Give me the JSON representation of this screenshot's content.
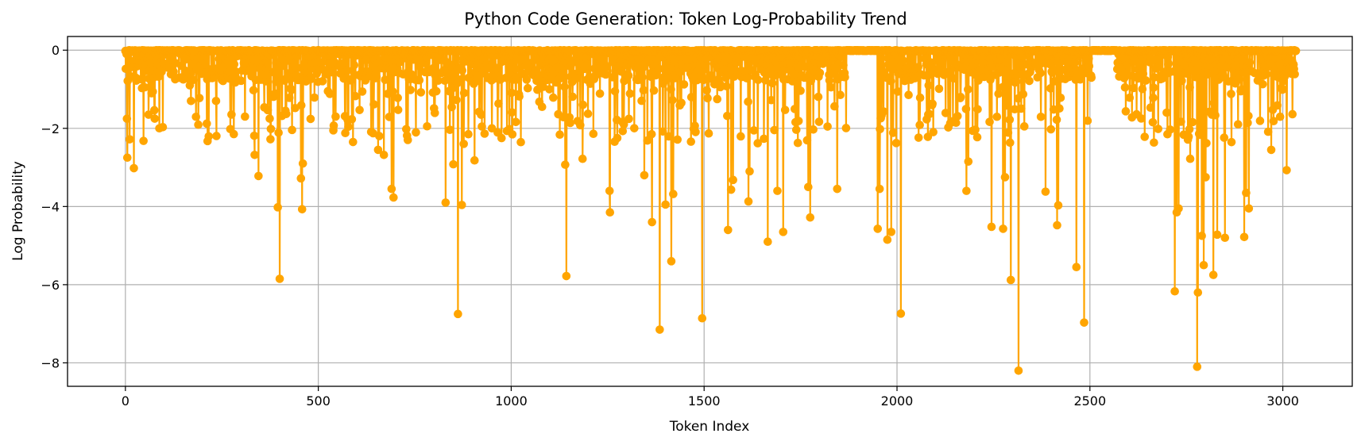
{
  "chart_data": {
    "type": "line",
    "title": "Python Code Generation: Token Log-Probability Trend",
    "xlabel": "Token Index",
    "ylabel": "Log Probability",
    "xlim": [
      -150,
      3180
    ],
    "ylim": [
      -8.6,
      0.35
    ],
    "xticks": [
      0,
      500,
      1000,
      1500,
      2000,
      2500,
      3000
    ],
    "yticks": [
      0,
      -2,
      -4,
      -6,
      -8
    ],
    "xtick_labels": [
      "0",
      "500",
      "1000",
      "1500",
      "2000",
      "2500",
      "3000"
    ],
    "ytick_labels": [
      "0",
      "−2",
      "−4",
      "−6",
      "−8"
    ],
    "grid": true,
    "marker": "circle",
    "n_points": 3035,
    "series": [
      {
        "color": "#FFA500",
        "baseline": 0,
        "points": [
          [
            5,
            -2.75
          ],
          [
            22,
            -3.02
          ],
          [
            60,
            -1.65
          ],
          [
            170,
            -1.3
          ],
          [
            235,
            -1.3
          ],
          [
            272,
            -2.02
          ],
          [
            310,
            -1.7
          ],
          [
            335,
            -2.68
          ],
          [
            345,
            -3.22
          ],
          [
            395,
            -4.02
          ],
          [
            400,
            -5.85
          ],
          [
            415,
            -1.55
          ],
          [
            455,
            -3.28
          ],
          [
            458,
            -4.07
          ],
          [
            460,
            -2.9
          ],
          [
            525,
            -1.05
          ],
          [
            540,
            -1.93
          ],
          [
            545,
            -1.7
          ],
          [
            570,
            -2.12
          ],
          [
            590,
            -2.35
          ],
          [
            655,
            -2.55
          ],
          [
            670,
            -2.68
          ],
          [
            690,
            -3.55
          ],
          [
            695,
            -3.77
          ],
          [
            728,
            -2.02
          ],
          [
            830,
            -3.9
          ],
          [
            850,
            -2.92
          ],
          [
            862,
            -6.75
          ],
          [
            872,
            -3.96
          ],
          [
            905,
            -2.82
          ],
          [
            950,
            -2.0
          ],
          [
            975,
            -2.25
          ],
          [
            995,
            -2.02
          ],
          [
            1080,
            -1.45
          ],
          [
            1140,
            -2.93
          ],
          [
            1143,
            -5.78
          ],
          [
            1185,
            -2.78
          ],
          [
            1255,
            -3.6
          ],
          [
            1256,
            -4.15
          ],
          [
            1345,
            -3.2
          ],
          [
            1365,
            -4.4
          ],
          [
            1385,
            -7.15
          ],
          [
            1400,
            -3.95
          ],
          [
            1415,
            -5.4
          ],
          [
            1420,
            -3.68
          ],
          [
            1495,
            -6.86
          ],
          [
            1562,
            -4.6
          ],
          [
            1570,
            -3.57
          ],
          [
            1575,
            -3.32
          ],
          [
            1615,
            -3.87
          ],
          [
            1618,
            -3.1
          ],
          [
            1665,
            -4.9
          ],
          [
            1690,
            -3.6
          ],
          [
            1705,
            -4.65
          ],
          [
            1770,
            -3.5
          ],
          [
            1775,
            -4.28
          ],
          [
            1845,
            -3.55
          ],
          [
            1950,
            -4.57
          ],
          [
            1955,
            -3.55
          ],
          [
            1975,
            -4.85
          ],
          [
            1985,
            -4.65
          ],
          [
            2010,
            -6.74
          ],
          [
            2180,
            -3.6
          ],
          [
            2185,
            -2.85
          ],
          [
            2245,
            -4.52
          ],
          [
            2275,
            -4.57
          ],
          [
            2280,
            -3.25
          ],
          [
            2295,
            -5.88
          ],
          [
            2315,
            -8.2
          ],
          [
            2330,
            -1.95
          ],
          [
            2385,
            -3.62
          ],
          [
            2415,
            -4.48
          ],
          [
            2418,
            -3.97
          ],
          [
            2465,
            -5.55
          ],
          [
            2485,
            -6.97
          ],
          [
            2720,
            -6.17
          ],
          [
            2725,
            -4.15
          ],
          [
            2730,
            -4.05
          ],
          [
            2760,
            -2.78
          ],
          [
            2778,
            -8.1
          ],
          [
            2780,
            -6.2
          ],
          [
            2790,
            -4.75
          ],
          [
            2795,
            -5.5
          ],
          [
            2800,
            -3.25
          ],
          [
            2820,
            -5.75
          ],
          [
            2830,
            -4.72
          ],
          [
            2850,
            -4.8
          ],
          [
            2900,
            -4.78
          ],
          [
            2905,
            -3.65
          ],
          [
            2912,
            -4.05
          ],
          [
            2970,
            -2.55
          ],
          [
            3010,
            -3.07
          ]
        ]
      }
    ]
  }
}
